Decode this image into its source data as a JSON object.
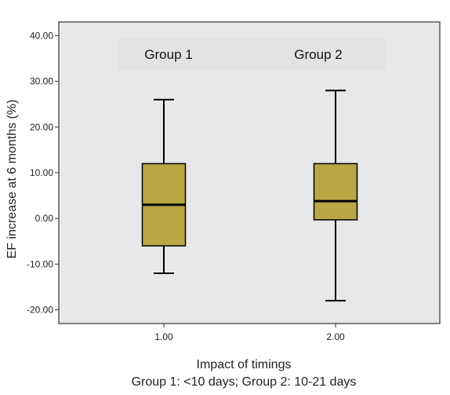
{
  "chart_data": {
    "type": "boxplot",
    "ylabel": "EF increase at 6 months (%)",
    "xlabel": "Impact of timings",
    "xlabel_note": "Group 1: <10 days; Group 2: 10-21 days",
    "ylim": [
      -23,
      43
    ],
    "y_ticks": [
      "-20.00",
      "-10.00",
      "0.00",
      "10.00",
      "20.00",
      "30.00",
      "40.00"
    ],
    "y_tick_values": [
      -20,
      -10,
      0,
      10,
      20,
      30,
      40
    ],
    "categories": [
      "1.00",
      "2.00"
    ],
    "group_labels": [
      "Group 1",
      "Group 2"
    ],
    "boxes": [
      {
        "category": "1.00",
        "min": -12,
        "q1": -6,
        "median": 3,
        "q3": 12,
        "max": 26
      },
      {
        "category": "2.00",
        "min": -18,
        "q1": -0.3,
        "median": 3.8,
        "q3": 12,
        "max": 28
      }
    ],
    "grid": false,
    "colors": {
      "box_fill": "#b9a645",
      "plot_background": "#e8e8ea",
      "label_band": "#e3e3e1",
      "line": "#000000"
    }
  }
}
